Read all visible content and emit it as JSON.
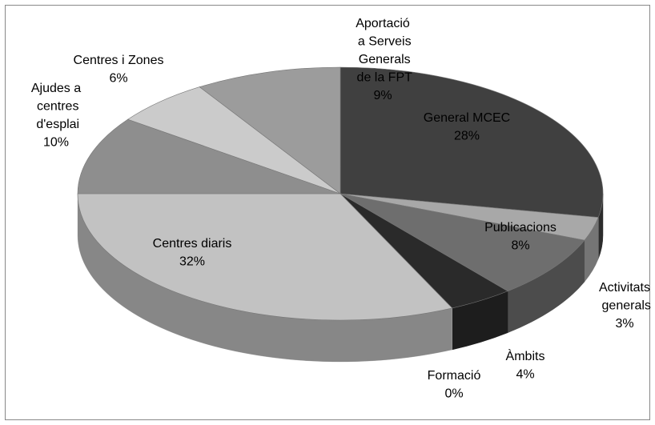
{
  "chart_data": {
    "type": "pie",
    "categories": [
      "General MCEC",
      "Activitats generals",
      "Publicacions",
      "Àmbits",
      "Formació",
      "Centres diaris",
      "Ajudes a centres d'esplai",
      "Centres i Zones",
      "Aportació a Serveis Generals de la FPT"
    ],
    "values": [
      28,
      3,
      8,
      4,
      0,
      32,
      10,
      6,
      9
    ],
    "value_labels": [
      "28%",
      "3%",
      "8%",
      "4%",
      "0%",
      "32%",
      "10%",
      "6%",
      "9%"
    ],
    "colors": [
      "#404040",
      "#a8a8a8",
      "#6e6e6e",
      "#2a2a2a",
      "#8a8a8a",
      "#c2c2c2",
      "#8e8e8e",
      "#cbcbcb",
      "#9c9c9c"
    ]
  }
}
